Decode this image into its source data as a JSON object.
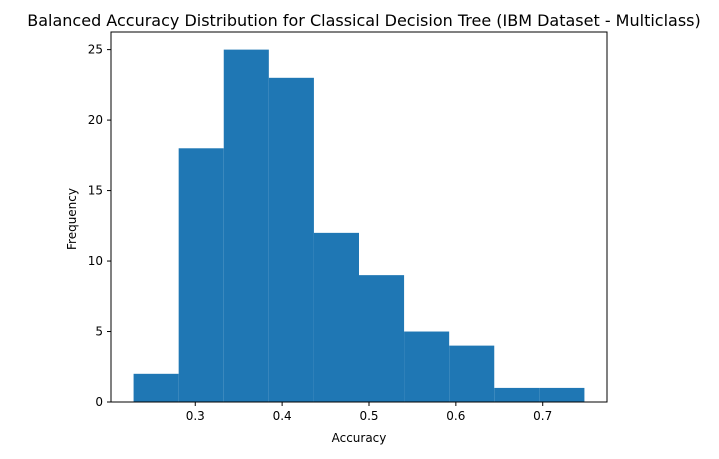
{
  "chart_data": {
    "type": "bar",
    "title": "Balanced Accuracy Distribution for Classical Decision Tree (IBM Dataset - Multiclass)",
    "xlabel": "Accuracy",
    "ylabel": "Frequency",
    "bin_edges": [
      0.229,
      0.2809,
      0.3328,
      0.3847,
      0.4366,
      0.4885,
      0.5404,
      0.5923,
      0.6442,
      0.6961,
      0.748
    ],
    "values": [
      2,
      18,
      25,
      23,
      12,
      9,
      5,
      4,
      1,
      1
    ],
    "xlim": [
      0.203,
      0.774
    ],
    "ylim": [
      0,
      26.25
    ],
    "x_ticks": [
      0.3,
      0.4,
      0.5,
      0.6,
      0.7
    ],
    "x_tick_labels": [
      "0.3",
      "0.4",
      "0.5",
      "0.6",
      "0.7"
    ],
    "y_ticks": [
      0,
      5,
      10,
      15,
      20,
      25
    ],
    "y_tick_labels": [
      "0",
      "5",
      "10",
      "15",
      "20",
      "25"
    ],
    "bar_color": "#1f77b4",
    "grid": false,
    "legend": "none"
  }
}
